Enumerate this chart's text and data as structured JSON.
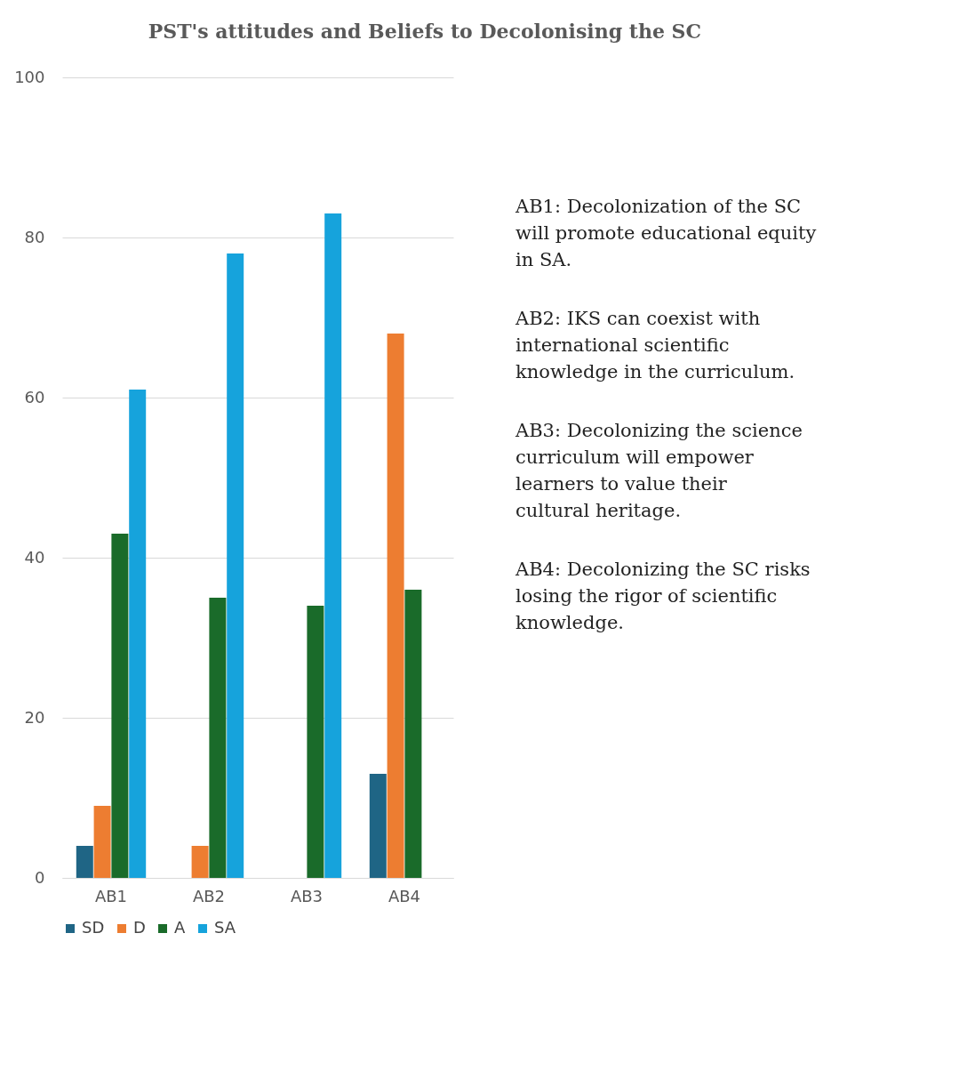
{
  "chart_data": {
    "type": "bar",
    "title": "PST's  attitudes and Beliefs to Decolonising the SC",
    "categories": [
      "AB1",
      "AB2",
      "AB3",
      "AB4"
    ],
    "series": [
      {
        "name": "SD",
        "color": "#1f6585",
        "values": [
          4,
          0,
          0,
          13
        ]
      },
      {
        "name": "D",
        "color": "#ed7d31",
        "values": [
          9,
          4,
          0,
          68
        ]
      },
      {
        "name": "A",
        "color": "#1a6b2a",
        "values": [
          43,
          35,
          34,
          36
        ]
      },
      {
        "name": "SA",
        "color": "#16a3dc",
        "values": [
          61,
          78,
          83,
          0
        ]
      }
    ],
    "ylim": [
      0,
      100
    ],
    "yticks": [
      0,
      20,
      40,
      60,
      80,
      100
    ],
    "grid": "y",
    "legend": "bottom",
    "annotations": [
      "AB1: Decolonization of the SC will promote educational equity in SA.",
      "AB2: IKS can coexist with international scientific knowledge in the curriculum.",
      "AB3: Decolonizing the science curriculum will empower learners to value their cultural heritage.",
      "AB4: Decolonizing the SC risks losing the rigor of scientific knowledge."
    ]
  }
}
